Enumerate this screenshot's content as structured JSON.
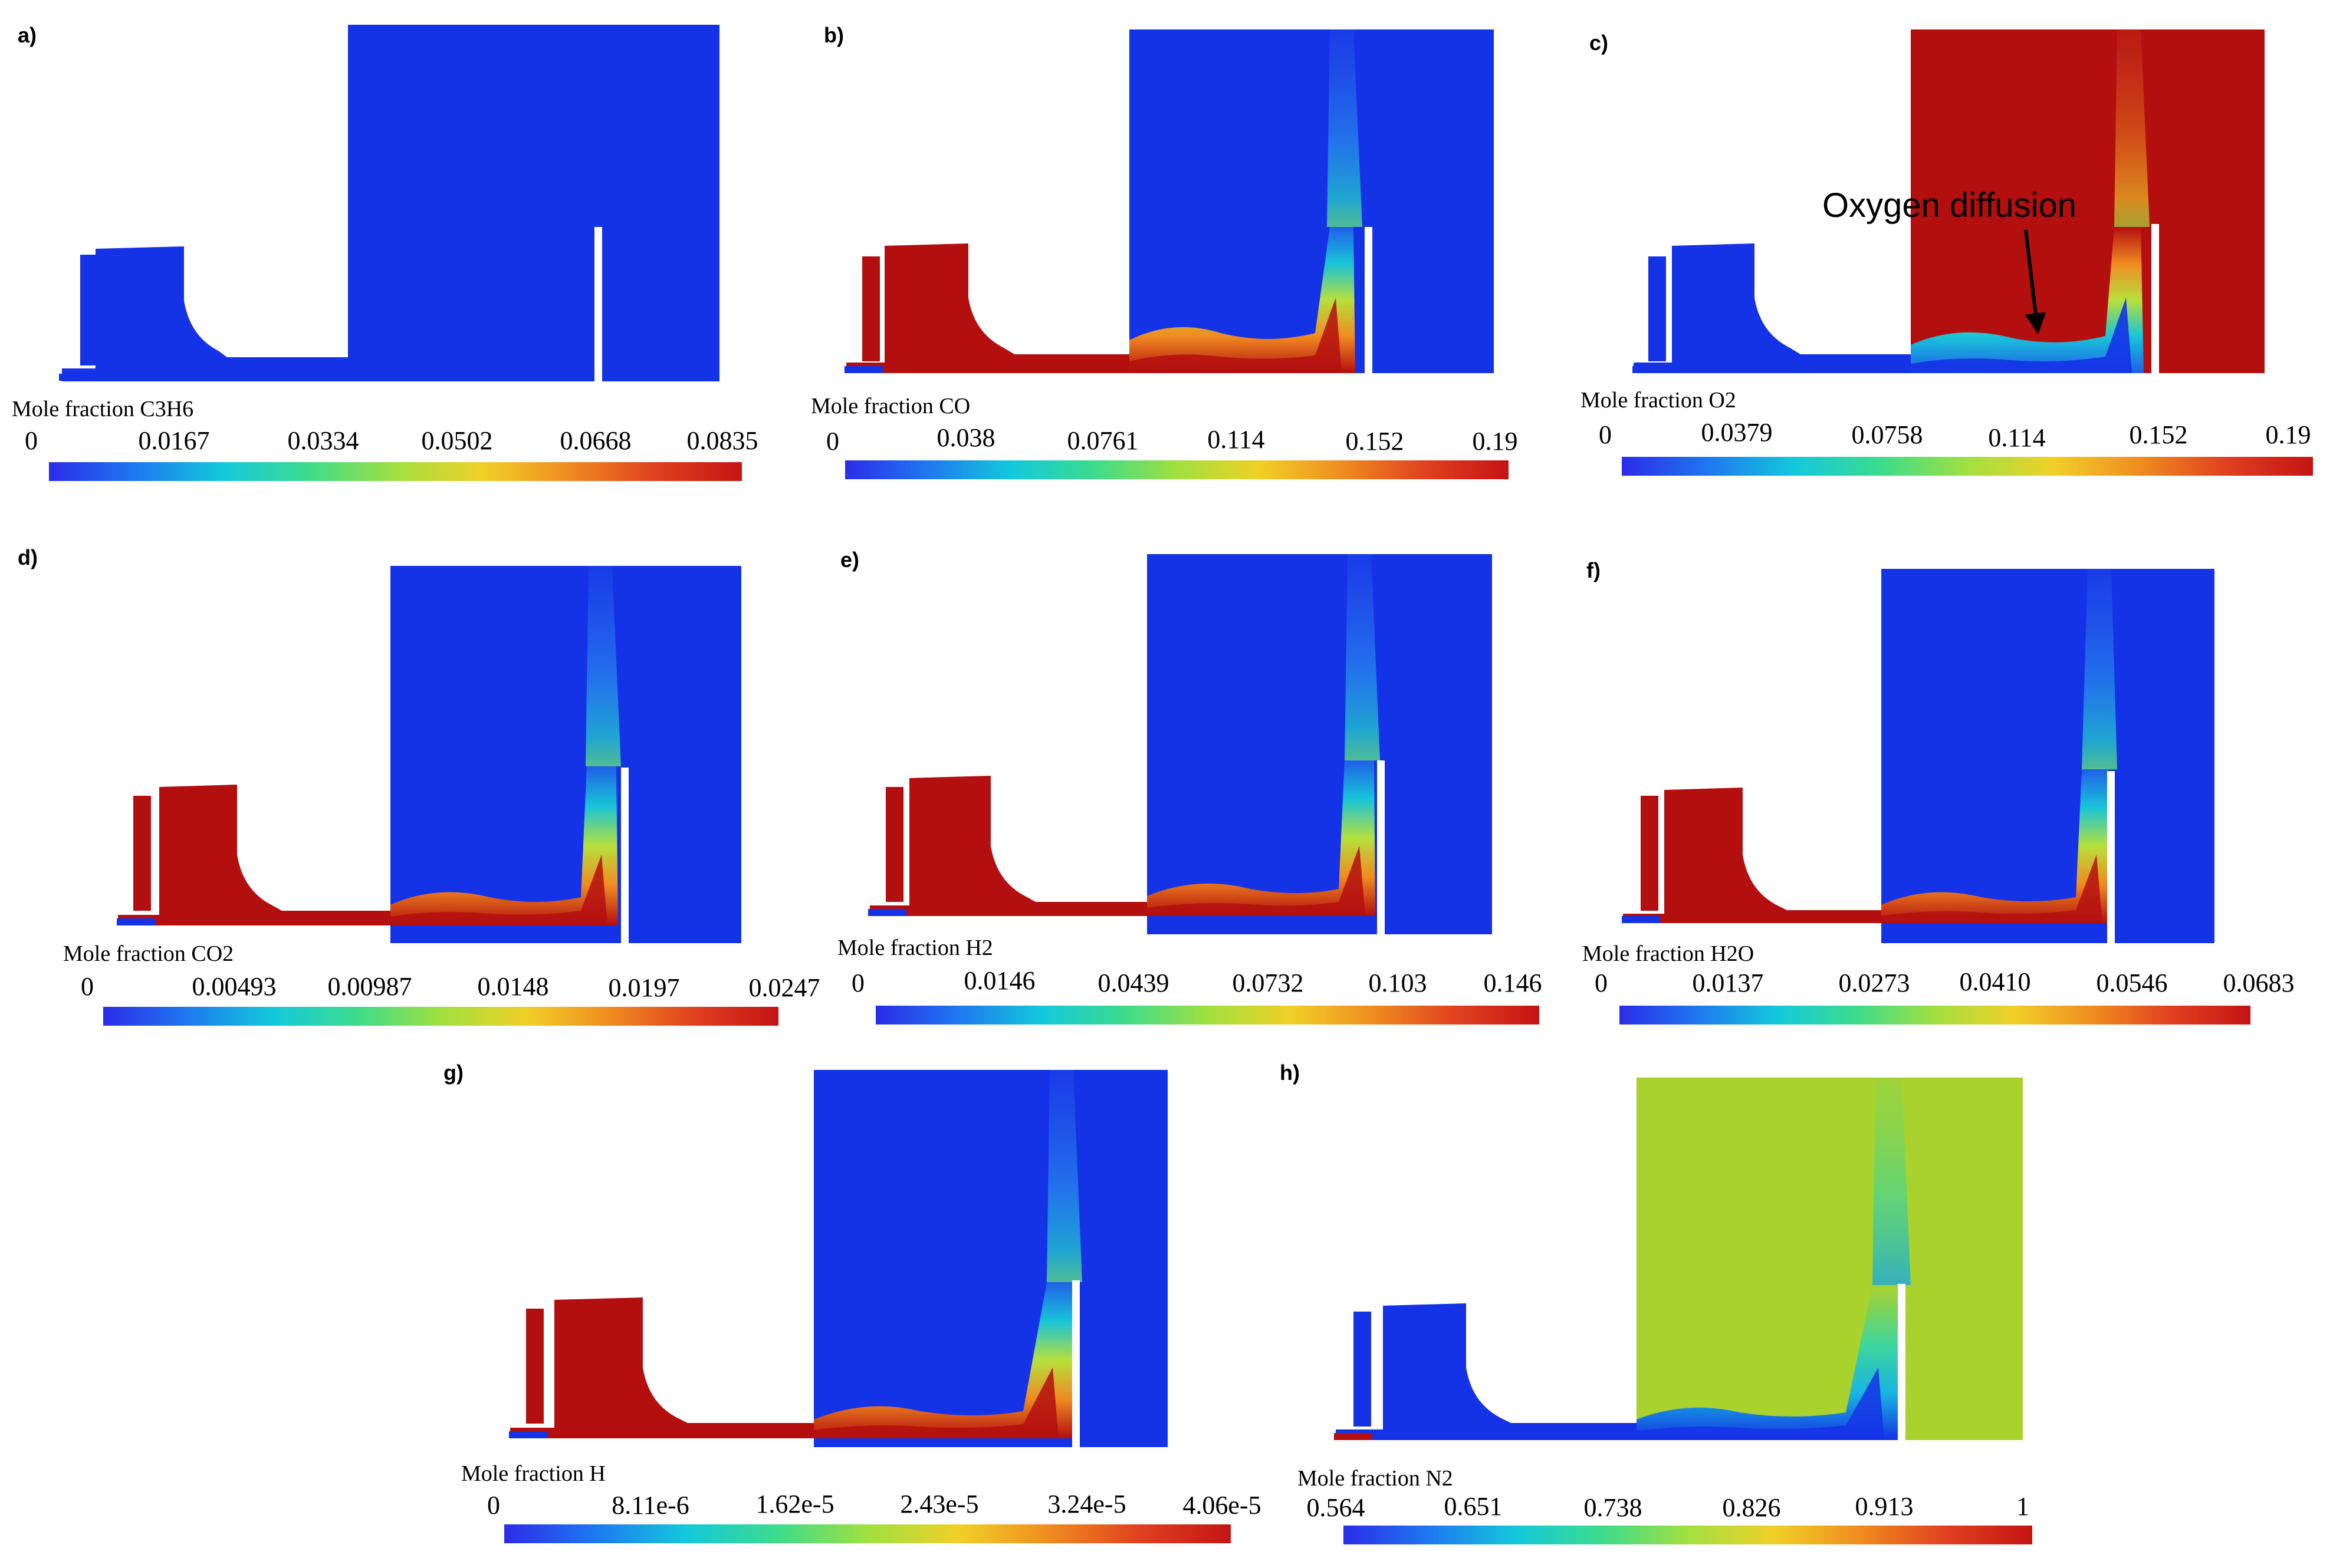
{
  "figure": {
    "annotation": {
      "text": "Oxygen diffusion"
    },
    "colors": {
      "low": "#1432e6",
      "high": "#b30f0f",
      "mid": "#a9d22c",
      "wall": "#ffffff",
      "colormap": [
        "#2c2ce8",
        "#1e78f0",
        "#14c8dc",
        "#3cdc8c",
        "#a0e040",
        "#f0d028",
        "#f08c20",
        "#e04020",
        "#c41414"
      ]
    },
    "panels": [
      {
        "id": "a",
        "label": "a)",
        "title": "Mole fraction C3H6",
        "ticks": [
          "0",
          "0.0167",
          "0.0334",
          "0.0502",
          "0.0668",
          "0.0835"
        ],
        "regime": "all-low"
      },
      {
        "id": "b",
        "label": "b)",
        "title": "Mole fraction CO",
        "ticks": [
          "0",
          "0.038",
          "0.0761",
          "0.114",
          "0.152",
          "0.19"
        ],
        "regime": "product"
      },
      {
        "id": "c",
        "label": "c)",
        "title": "Mole fraction O2",
        "ticks": [
          "0",
          "0.0379",
          "0.0758",
          "0.114",
          "0.152",
          "0.19"
        ],
        "regime": "oxygen"
      },
      {
        "id": "d",
        "label": "d)",
        "title": "Mole fraction CO2",
        "ticks": [
          "0",
          "0.00493",
          "0.00987",
          "0.0148",
          "0.0197",
          "0.0247"
        ],
        "regime": "product"
      },
      {
        "id": "e",
        "label": "e)",
        "title": "Mole fraction H2",
        "ticks": [
          "0",
          "0.0146",
          "0.0439",
          "0.0732",
          "0.103",
          "0.146"
        ],
        "regime": "product"
      },
      {
        "id": "f",
        "label": "f)",
        "title": "Mole fraction H2O",
        "ticks": [
          "0",
          "0.0137",
          "0.0273",
          "0.0410",
          "0.0546",
          "0.0683"
        ],
        "regime": "product"
      },
      {
        "id": "g",
        "label": "g)",
        "title": "Mole fraction H",
        "ticks": [
          "0",
          "8.11e-6",
          "1.62e-5",
          "2.43e-5",
          "3.24e-5",
          "4.06e-5"
        ],
        "regime": "product"
      },
      {
        "id": "h",
        "label": "h)",
        "title": "Mole fraction N2",
        "ticks": [
          "0.564",
          "0.651",
          "0.738",
          "0.826",
          "0.913",
          "1"
        ],
        "regime": "nitrogen"
      }
    ]
  }
}
